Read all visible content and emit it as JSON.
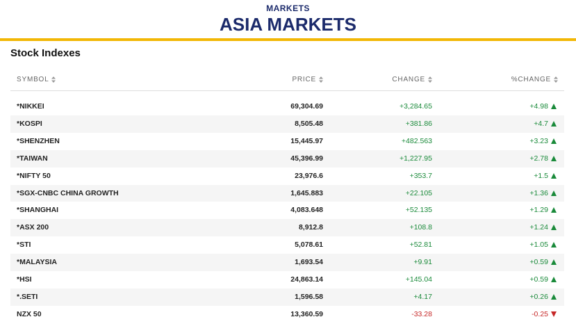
{
  "header": {
    "kicker": "MARKETS",
    "title": "ASIA MARKETS"
  },
  "section": {
    "title": "Stock Indexes"
  },
  "table": {
    "columns": [
      "SYMBOL",
      "PRICE",
      "CHANGE",
      "%CHANGE"
    ],
    "rows": [
      [
        "*NIKKEI",
        "69,304.69",
        "+3,284.65",
        "+4.98"
      ],
      [
        "*KOSPI",
        "8,505.48",
        "+381.86",
        "+4.7"
      ],
      [
        "*SHENZHEN",
        "15,445.97",
        "+482.563",
        "+3.23"
      ],
      [
        "*TAIWAN",
        "45,396.99",
        "+1,227.95",
        "+2.78"
      ],
      [
        "*NIFTY 50",
        "23,976.6",
        "+353.7",
        "+1.5"
      ],
      [
        "*SGX-CNBC CHINA GROWTH",
        "1,645.883",
        "+22.105",
        "+1.36"
      ],
      [
        "*SHANGHAI",
        "4,083.648",
        "+52.135",
        "+1.29"
      ],
      [
        "*ASX 200",
        "8,912.8",
        "+108.8",
        "+1.24"
      ],
      [
        "*STI",
        "5,078.61",
        "+52.81",
        "+1.05"
      ],
      [
        "*MALAYSIA",
        "1,693.54",
        "+9.91",
        "+0.59"
      ],
      [
        "*HSI",
        "24,863.14",
        "+145.04",
        "+0.59"
      ],
      [
        "*.SETI",
        "1,596.58",
        "+4.17",
        "+0.26"
      ],
      [
        "NZX 50",
        "13,360.59",
        "-33.28",
        "-0.25"
      ]
    ]
  }
}
